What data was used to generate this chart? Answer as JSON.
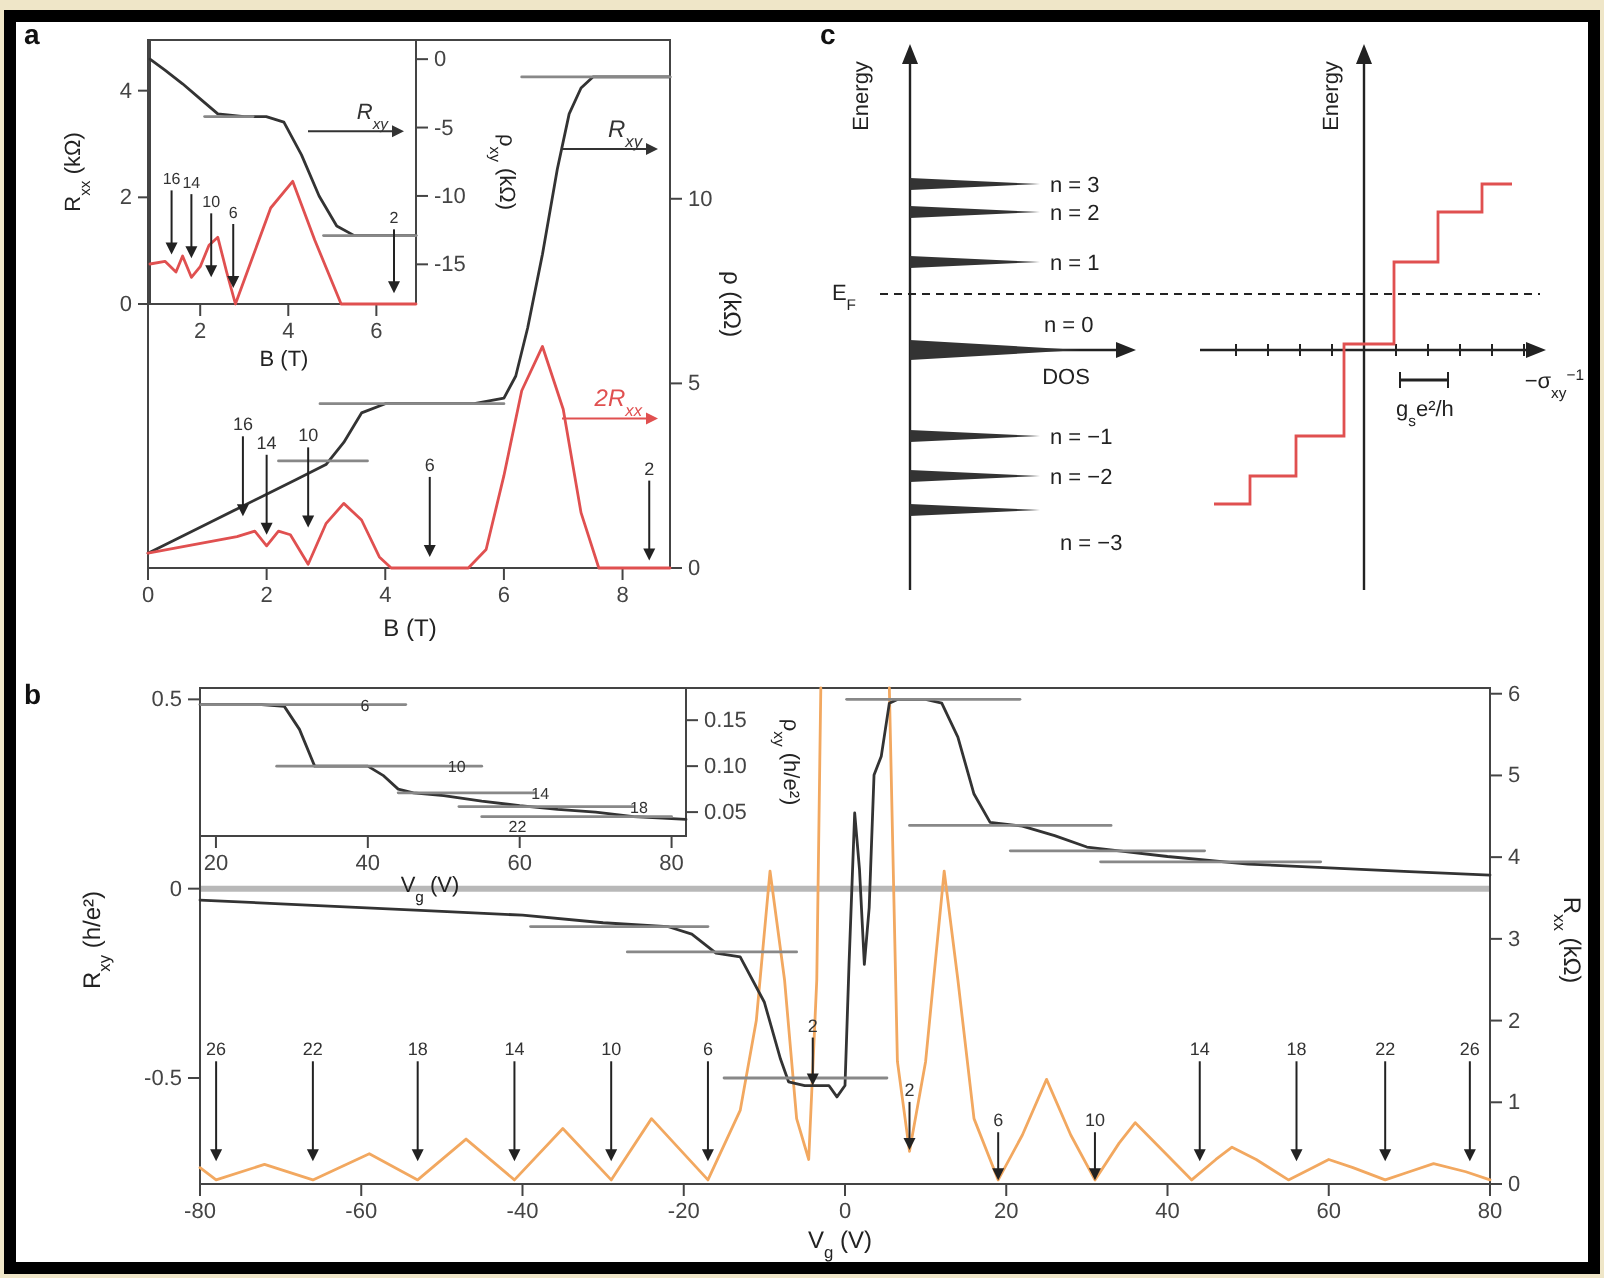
{
  "chart_data": [
    {
      "type": "line",
      "title": "a",
      "xlabel": "B (T)",
      "y2label": "ρ (kΩ)",
      "xlim": [
        0,
        8.8
      ],
      "xticks": [
        0,
        2,
        4,
        6,
        8
      ],
      "y2lim": [
        0,
        14.3
      ],
      "y2ticks": [
        0,
        5,
        10
      ],
      "series": [
        {
          "name": "R$_{xy}$",
          "color": "#333333",
          "axis": "y2",
          "x": [
            0,
            0.5,
            1,
            1.5,
            2,
            2.5,
            3,
            3.3,
            3.6,
            4,
            4.5,
            5,
            5.5,
            6,
            6.2,
            6.4,
            6.65,
            6.9,
            7.1,
            7.3,
            7.5,
            7.8,
            8.2,
            8.8
          ],
          "values": [
            0.4,
            0.8,
            1.2,
            1.6,
            2.0,
            2.4,
            2.8,
            3.4,
            4.2,
            4.45,
            4.45,
            4.45,
            4.45,
            4.6,
            5.2,
            6.5,
            8.5,
            10.8,
            12.3,
            13.0,
            13.3,
            13.3,
            13.3,
            13.3
          ]
        },
        {
          "name": "2R$_{xx}$",
          "color": "#e05050",
          "axis": "y2",
          "x": [
            0,
            0.5,
            1,
            1.5,
            1.8,
            2.0,
            2.2,
            2.4,
            2.7,
            3.0,
            3.3,
            3.6,
            3.9,
            4.1,
            5.4,
            5.7,
            6.0,
            6.3,
            6.65,
            7.0,
            7.3,
            7.6,
            8.8
          ],
          "values": [
            0.4,
            0.55,
            0.7,
            0.85,
            1.0,
            0.6,
            1.0,
            0.9,
            0.1,
            1.2,
            1.75,
            1.3,
            0.3,
            0,
            0,
            0.5,
            2.5,
            4.8,
            6.0,
            4.3,
            1.5,
            0,
            0
          ]
        },
        {
          "color": "#888888",
          "axis": "y2",
          "x": [
            6.3,
            8.8
          ],
          "values": [
            13.3,
            13.3
          ]
        },
        {
          "color": "#888888",
          "axis": "y2",
          "x": [
            2.9,
            6.0
          ],
          "values": [
            4.45,
            4.45
          ]
        },
        {
          "color": "#888888",
          "axis": "y2",
          "x": [
            2.2,
            3.7
          ],
          "values": [
            2.9,
            2.9
          ]
        }
      ],
      "legend": "right",
      "annotations": [
        "16",
        "14",
        "10",
        "6",
        "2"
      ]
    },
    {
      "type": "line",
      "xlabel": "B (T)",
      "ylabel": "R$_{xx}$ (kΩ)",
      "y2label": "ρ$_{xy}$ (kΩ)",
      "xlim": [
        0.86,
        6.9
      ],
      "xticks": [
        2,
        4,
        6
      ],
      "ylim": [
        0,
        4.95
      ],
      "yticks": [
        0,
        2,
        4
      ],
      "y2lim": [
        -17.9,
        1.4
      ],
      "y2ticks": [
        0,
        -5,
        -10,
        -15
      ],
      "series": [
        {
          "name": "R$_{xy}$",
          "color": "#333333",
          "axis": "y2",
          "x": [
            0.86,
            1.2,
            1.6,
            2.0,
            2.4,
            3.0,
            3.5,
            3.9,
            4.3,
            4.7,
            5.1,
            5.5,
            6.0,
            6.9
          ],
          "values": [
            0,
            -0.8,
            -1.8,
            -2.9,
            -4.0,
            -4.2,
            -4.2,
            -4.6,
            -7.0,
            -10.0,
            -12.2,
            -12.9,
            -12.9,
            -12.9
          ]
        },
        {
          "color": "#e05050",
          "x": [
            0.86,
            1.2,
            1.45,
            1.6,
            1.8,
            2.0,
            2.2,
            2.4,
            2.6,
            2.8,
            3.2,
            3.6,
            4.1,
            4.6,
            5.2,
            6.9
          ],
          "values": [
            0.75,
            0.8,
            0.6,
            0.9,
            0.5,
            0.7,
            1.1,
            1.25,
            0.6,
            0.0,
            0.9,
            1.8,
            2.3,
            1.2,
            0,
            0
          ]
        },
        {
          "color": "#888888",
          "axis": "y2",
          "x": [
            4.8,
            6.9
          ],
          "values": [
            -12.9,
            -12.9
          ]
        },
        {
          "color": "#888888",
          "axis": "y2",
          "x": [
            2.1,
            3.2
          ],
          "values": [
            -4.2,
            -4.2
          ]
        }
      ],
      "legend": "top right",
      "annotations": [
        "16",
        "14",
        "10",
        "6",
        "2"
      ]
    },
    {
      "type": "other",
      "title": "c",
      "annotations": [
        "Energy",
        "n = 3",
        "n = 2",
        "n = 1",
        "E$_{F}$",
        "n = 0",
        "DOS",
        "n = −1",
        "n = −2",
        "n = −3",
        "Energy",
        "−σ$_{xy}$$^{−1}$",
        "g$_{s}$e²/h"
      ]
    },
    {
      "type": "line",
      "title": "b",
      "xlabel": "V$_{g}$ (V)",
      "ylabel": "R$_{xy}$ (h/e²)",
      "y2label": "R$_{xx}$ (kΩ)",
      "xlim": [
        -80,
        80
      ],
      "xticks": [
        -80,
        -60,
        -40,
        -20,
        0,
        20,
        40,
        60,
        80
      ],
      "ylim": [
        -0.78,
        0.53
      ],
      "yticks": [
        -0.5,
        0,
        0.5
      ],
      "y2lim": [
        0,
        6.07
      ],
      "y2ticks": [
        0,
        1,
        2,
        3,
        4,
        5,
        6
      ],
      "ref_lines": [
        {
          "axis": "y",
          "value": 0,
          "color": "#b8b8b8"
        }
      ],
      "series": [
        {
          "color": "#f2a860",
          "axis": "y2",
          "x": [
            -80,
            -78,
            -72,
            -66,
            -59,
            -53,
            -47,
            -41,
            -35,
            -29,
            -24,
            -17,
            -13,
            -11,
            -9.3,
            -7.5,
            -6,
            -4.5,
            -3.5,
            -3,
            -1,
            5.5,
            6.5,
            8,
            10,
            12.3,
            14,
            16,
            19,
            22,
            25,
            28,
            31,
            34,
            36,
            39,
            43,
            46,
            48,
            51,
            55,
            58,
            60,
            63,
            67,
            70,
            73,
            77,
            80
          ],
          "values": [
            0.2,
            0.05,
            0.24,
            0.05,
            0.37,
            0.05,
            0.55,
            0.05,
            0.68,
            0.05,
            0.8,
            0.05,
            0.9,
            2.0,
            3.83,
            2.5,
            0.8,
            0.3,
            2.5,
            6.07,
            null,
            6.07,
            1.5,
            0.4,
            1.5,
            3.83,
            2.5,
            0.8,
            0.05,
            0.6,
            1.28,
            0.6,
            0.05,
            0.5,
            0.75,
            0.45,
            0.05,
            0.3,
            0.45,
            0.3,
            0.05,
            0.2,
            0.3,
            0.2,
            0.05,
            0.15,
            0.25,
            0.15,
            0.05
          ]
        },
        {
          "color": "#333333",
          "x": [
            -80,
            -70,
            -60,
            -50,
            -40,
            -30,
            -22,
            -19,
            -16,
            -13,
            -10,
            -8,
            -7,
            -5,
            -2,
            -1,
            0,
            0.5,
            1.2,
            1.8,
            2.4,
            3.0,
            3.6,
            4.5,
            5.5,
            6.5,
            8,
            10,
            12,
            14,
            16,
            18,
            22,
            26,
            30,
            34,
            40,
            50,
            60,
            70,
            80
          ],
          "values": [
            -0.03,
            -0.04,
            -0.05,
            -0.06,
            -0.07,
            -0.09,
            -0.1,
            -0.12,
            -0.17,
            -0.18,
            -0.3,
            -0.45,
            -0.51,
            -0.52,
            -0.52,
            -0.55,
            -0.52,
            -0.2,
            0.2,
            0.05,
            -0.2,
            -0.05,
            0.3,
            0.35,
            0.49,
            0.5,
            0.5,
            0.5,
            0.49,
            0.4,
            0.25,
            0.175,
            0.165,
            0.14,
            0.11,
            0.1,
            0.085,
            0.065,
            0.055,
            0.045,
            0.036
          ]
        },
        {
          "color": "#888888",
          "x": [
            -15,
            5.2
          ],
          "values": [
            -0.5,
            -0.5
          ]
        },
        {
          "color": "#888888",
          "x": [
            -27,
            -6
          ],
          "values": [
            -0.167,
            -0.167
          ]
        },
        {
          "color": "#888888",
          "x": [
            -39,
            -17
          ],
          "values": [
            -0.1,
            -0.1
          ]
        },
        {
          "color": "#888888",
          "x": [
            0.2,
            21.7
          ],
          "values": [
            0.5,
            0.5
          ]
        },
        {
          "color": "#888888",
          "x": [
            8,
            33
          ],
          "values": [
            0.167,
            0.167
          ]
        },
        {
          "color": "#888888",
          "x": [
            20.5,
            44.6
          ],
          "values": [
            0.1,
            0.1
          ]
        },
        {
          "color": "#888888",
          "x": [
            31.7,
            59
          ],
          "values": [
            0.071,
            0.071
          ]
        }
      ],
      "annotations": [
        "26",
        "22",
        "18",
        "14",
        "10",
        "6",
        {
          "text": "2",
          "x": -4,
          "y": -0.52
        },
        {
          "text": "2",
          "x": 8,
          "y": -0.69
        },
        {
          "text": "6",
          "x": 19,
          "y": -0.77
        },
        {
          "text": "10",
          "x": 31,
          "y": -0.77
        },
        "14",
        "18",
        "22",
        "26"
      ]
    },
    {
      "type": "line",
      "xlabel": "V$_{g}$ (V)",
      "y2label": "ρ$_{xy}$ (h/e²)",
      "xlim": [
        17.9,
        81.9
      ],
      "xticks": [
        20,
        40,
        60,
        80
      ],
      "y2lim": [
        0.024,
        0.185
      ],
      "y2ticks": [
        {
          "value": 0.05,
          "label": "0.05"
        },
        {
          "value": 0.1,
          "label": "0.10"
        },
        {
          "value": 0.15,
          "label": "0.15"
        }
      ],
      "series": [
        {
          "color": "#333333",
          "axis": "y2",
          "x": [
            17.9,
            22,
            26,
            29,
            31,
            33,
            36,
            40,
            42,
            44,
            46,
            50,
            55,
            60,
            65,
            70,
            75,
            81.9
          ],
          "values": [
            0.167,
            0.167,
            0.167,
            0.165,
            0.14,
            0.1,
            0.1,
            0.1,
            0.09,
            0.075,
            0.071,
            0.068,
            0.062,
            0.057,
            0.053,
            0.05,
            0.045,
            0.042
          ]
        },
        {
          "color": "#888888",
          "axis": "y2",
          "x": [
            18,
            45
          ],
          "values": [
            0.167,
            0.167
          ]
        },
        {
          "color": "#888888",
          "axis": "y2",
          "x": [
            28,
            55
          ],
          "values": [
            0.1,
            0.1
          ]
        },
        {
          "color": "#888888",
          "axis": "y2",
          "x": [
            44,
            62
          ],
          "values": [
            0.071,
            0.071
          ]
        },
        {
          "color": "#888888",
          "axis": "y2",
          "x": [
            52,
            75
          ],
          "values": [
            0.056,
            0.056
          ]
        },
        {
          "color": "#888888",
          "axis": "y2",
          "x": [
            55,
            80
          ],
          "values": [
            0.045,
            0.045
          ]
        }
      ],
      "annotations": [
        "6",
        "10",
        "14",
        "18",
        "22"
      ]
    }
  ]
}
